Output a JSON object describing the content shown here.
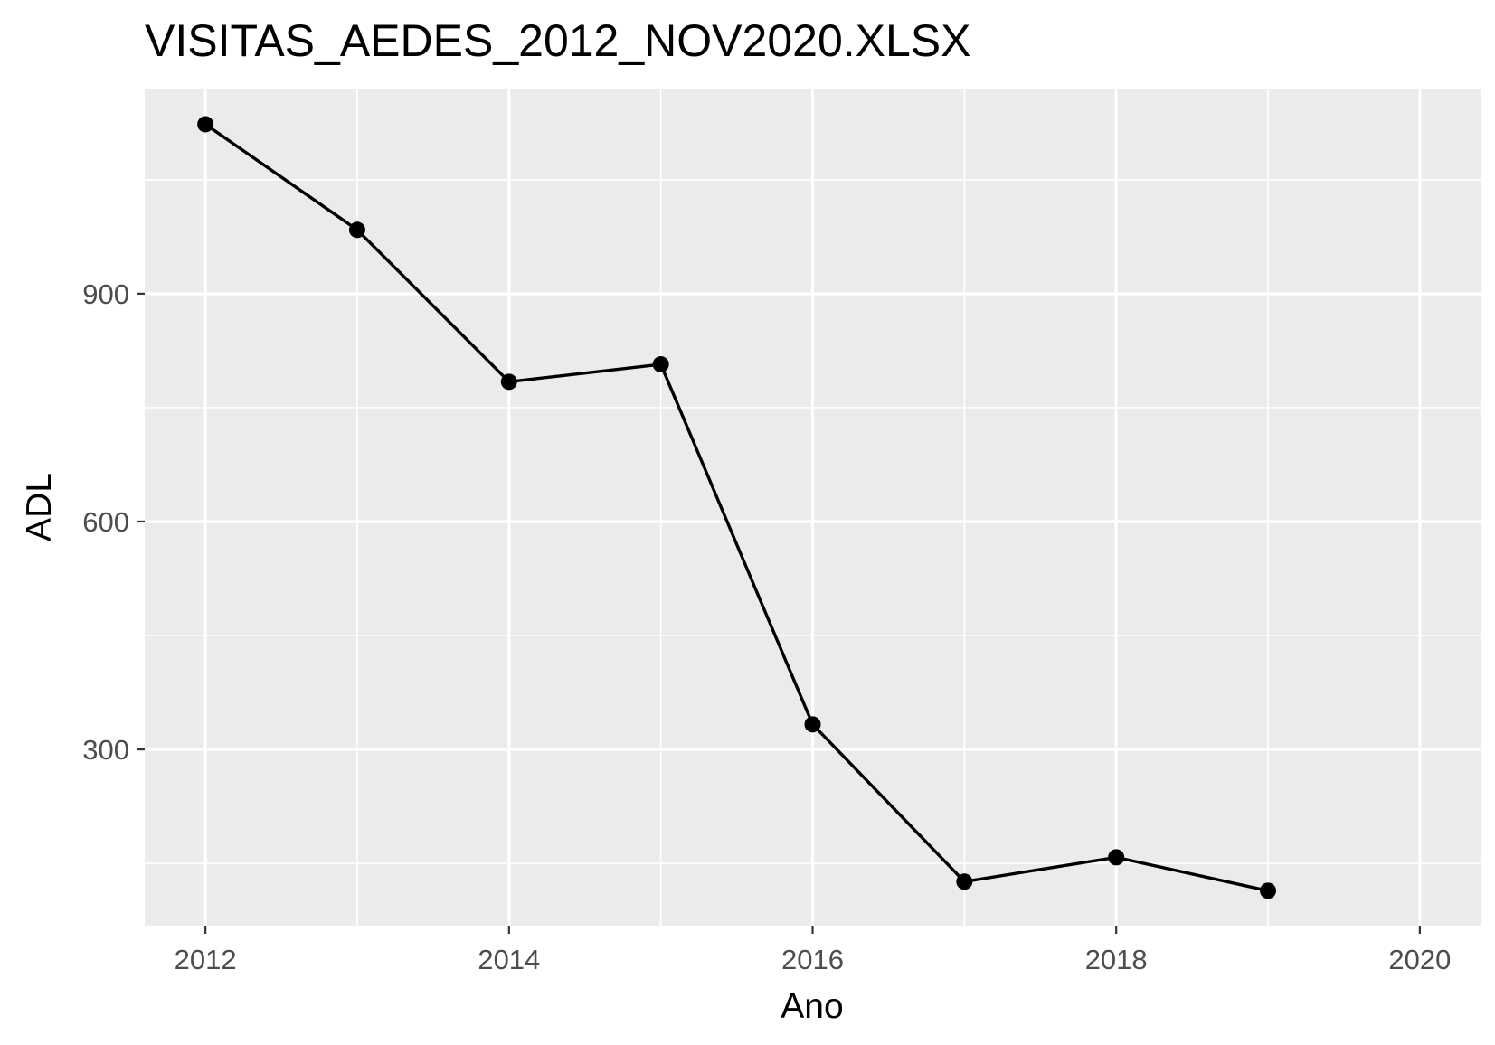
{
  "chart_data": {
    "type": "line",
    "title": "VISITAS_AEDES_2012_NOV2020.XLSX",
    "xlabel": "Ano",
    "ylabel": "ADL",
    "x": [
      2012,
      2013,
      2014,
      2015,
      2016,
      2017,
      2018,
      2019
    ],
    "series": [
      {
        "values": [
          1123,
          984,
          784,
          807,
          333,
          126,
          158,
          114
        ]
      }
    ],
    "xlim": [
      2011.6,
      2020.4
    ],
    "ylim": [
      68,
      1170
    ],
    "x_ticks": [
      2012,
      2014,
      2016,
      2018,
      2020
    ],
    "x_minor_ticks": [
      2013,
      2015,
      2017,
      2019
    ],
    "y_ticks": [
      300,
      600,
      900
    ],
    "y_minor_ticks": [
      150,
      450,
      750,
      1050
    ],
    "grid": true,
    "colors": {
      "panel_background": "#ebebeb",
      "grid": "#ffffff",
      "line": "#000000",
      "point": "#000000",
      "tick_mark": "#333333"
    }
  }
}
